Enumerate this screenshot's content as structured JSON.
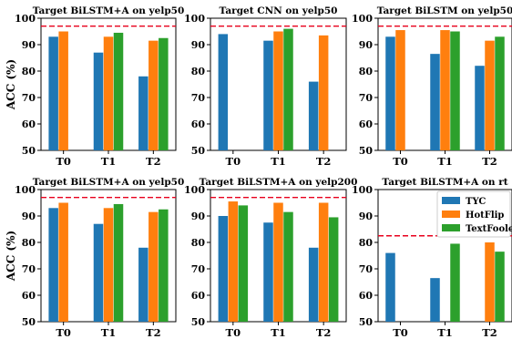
{
  "chart_data": [
    {
      "type": "bar",
      "title": "Target BiLSTM+A on yelp50",
      "ylabel": "ACC (%)",
      "ylim": [
        50,
        100
      ],
      "yticks": [
        50,
        60,
        70,
        80,
        90,
        100
      ],
      "categories": [
        "T0",
        "T1",
        "T2"
      ],
      "reference_line": 97,
      "series": [
        {
          "name": "TYC",
          "values": [
            93,
            87,
            78
          ]
        },
        {
          "name": "HotFlip",
          "values": [
            95,
            93,
            91.5
          ]
        },
        {
          "name": "TextFooler",
          "values": [
            null,
            94.5,
            92.5
          ]
        }
      ]
    },
    {
      "type": "bar",
      "title": "Target CNN on yelp50",
      "ylim": [
        50,
        100
      ],
      "yticks": [
        50,
        60,
        70,
        80,
        90,
        100
      ],
      "categories": [
        "T0",
        "T1",
        "T2"
      ],
      "reference_line": 97,
      "series": [
        {
          "name": "TYC",
          "values": [
            94,
            91.5,
            76
          ]
        },
        {
          "name": "HotFlip",
          "values": [
            null,
            95,
            93.5
          ]
        },
        {
          "name": "TextFooler",
          "values": [
            null,
            96,
            null
          ]
        }
      ]
    },
    {
      "type": "bar",
      "title": "Target BiLSTM on yelp50",
      "ylim": [
        50,
        100
      ],
      "yticks": [
        50,
        60,
        70,
        80,
        90,
        100
      ],
      "categories": [
        "T0",
        "T1",
        "T2"
      ],
      "reference_line": 97,
      "series": [
        {
          "name": "TYC",
          "values": [
            93,
            86.5,
            82
          ]
        },
        {
          "name": "HotFlip",
          "values": [
            95.5,
            95.5,
            91.5
          ]
        },
        {
          "name": "TextFooler",
          "values": [
            null,
            95,
            93
          ]
        }
      ]
    },
    {
      "type": "bar",
      "title": "Target BiLSTM+A on yelp50",
      "ylabel": "ACC (%)",
      "ylim": [
        50,
        100
      ],
      "yticks": [
        50,
        60,
        70,
        80,
        90,
        100
      ],
      "categories": [
        "T0",
        "T1",
        "T2"
      ],
      "reference_line": 97,
      "series": [
        {
          "name": "TYC",
          "values": [
            93,
            87,
            78
          ]
        },
        {
          "name": "HotFlip",
          "values": [
            95,
            93,
            91.5
          ]
        },
        {
          "name": "TextFooler",
          "values": [
            null,
            94.5,
            92.5
          ]
        }
      ]
    },
    {
      "type": "bar",
      "title": "Target BiLSTM+A on yelp200",
      "ylim": [
        50,
        100
      ],
      "yticks": [
        50,
        60,
        70,
        80,
        90,
        100
      ],
      "categories": [
        "T0",
        "T1",
        "T2"
      ],
      "reference_line": 97,
      "series": [
        {
          "name": "TYC",
          "values": [
            90,
            87.5,
            78
          ]
        },
        {
          "name": "HotFlip",
          "values": [
            95.5,
            95,
            95
          ]
        },
        {
          "name": "TextFooler",
          "values": [
            94,
            91.5,
            89.5
          ]
        }
      ]
    },
    {
      "type": "bar",
      "title": "Target BiLSTM+A on rt",
      "ylim": [
        50,
        100
      ],
      "yticks": [
        50,
        60,
        70,
        80,
        90,
        100
      ],
      "categories": [
        "T0",
        "T1",
        "T2"
      ],
      "reference_line": 82.5,
      "legend_position": "top-right",
      "series": [
        {
          "name": "TYC",
          "values": [
            76,
            66.5,
            null
          ]
        },
        {
          "name": "HotFlip",
          "values": [
            null,
            null,
            80
          ]
        },
        {
          "name": "TextFooler",
          "values": [
            null,
            79.5,
            76.5
          ]
        }
      ]
    }
  ],
  "legend": [
    {
      "label": "TYC",
      "color": "#1f77b4"
    },
    {
      "label": "HotFlip",
      "color": "#ff7f0e"
    },
    {
      "label": "TextFooler",
      "color": "#2ca02c"
    }
  ],
  "colors": {
    "TYC": "#1f77b4",
    "HotFlip": "#ff7f0e",
    "TextFooler": "#2ca02c",
    "reference_line": "#e8001c"
  }
}
